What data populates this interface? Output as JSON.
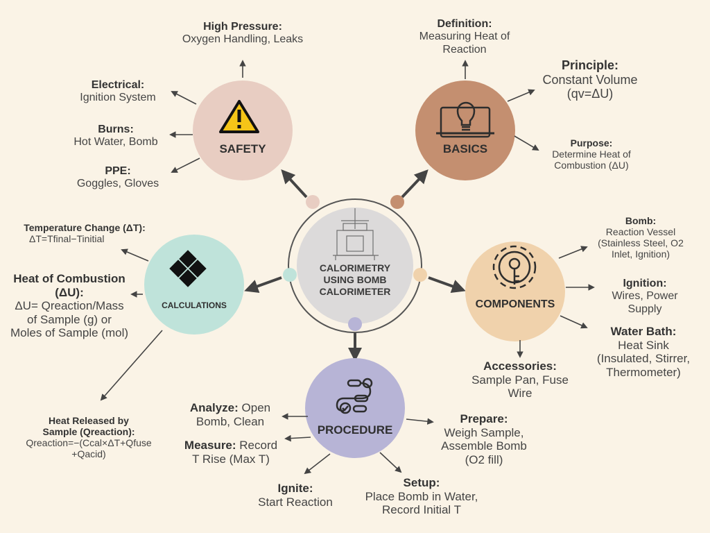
{
  "center": {
    "title": "CALORIMETRY\nUSING BOMB\nCALORIMETER"
  },
  "colors": {
    "background": "#faf3e6",
    "safety": "#e8cdc2",
    "basics": "#c48f70",
    "components": "#f0d2ac",
    "procedure": "#b7b4d6",
    "calculations": "#bfe3da",
    "center": "#dcdada"
  },
  "nodes": {
    "safety": {
      "label": "SAFETY",
      "icon": "warning-icon"
    },
    "basics": {
      "label": "BASICS",
      "icon": "lightbulb-icon"
    },
    "components": {
      "label": "COMPONENTS",
      "icon": "gear-key-icon"
    },
    "procedure": {
      "label": "PROCEDURE",
      "icon": "workflow-icon"
    },
    "calculations": {
      "label": "CALCULATIONS",
      "icon": "calculator-icon"
    }
  },
  "safety": {
    "high_pressure": {
      "title": "High Pressure:",
      "text": "Oxygen Handling, Leaks"
    },
    "electrical": {
      "title": "Electrical:",
      "text": "Ignition System"
    },
    "burns": {
      "title": "Burns:",
      "text": "Hot Water, Bomb"
    },
    "ppe": {
      "title": "PPE:",
      "text": "Goggles, Gloves"
    }
  },
  "basics": {
    "definition": {
      "title": "Definition:",
      "text": "Measuring Heat of\nReaction"
    },
    "principle": {
      "title": "Principle:",
      "text": "Constant Volume\n(qv=ΔU)"
    },
    "purpose": {
      "title": "Purpose:",
      "text": "Determine Heat of\nCombustion (ΔU)"
    }
  },
  "components": {
    "bomb": {
      "title": "Bomb:",
      "text": "Reaction Vessel\n(Stainless Steel, O2\nInlet, Ignition)"
    },
    "ignition": {
      "title": "Ignition:",
      "text": "Wires, Power\nSupply"
    },
    "water_bath": {
      "title": "Water Bath:",
      "text": "Heat Sink\n(Insulated, Stirrer,\nThermometer)"
    },
    "accessories": {
      "title": "Accessories:",
      "text": "Sample Pan, Fuse\nWire"
    }
  },
  "procedure": {
    "prepare": {
      "title": "Prepare:",
      "text": "Weigh Sample,\nAssemble Bomb\n(O2 fill)"
    },
    "setup": {
      "title": "Setup:",
      "text": "Place Bomb in Water,\nRecord Initial T"
    },
    "ignite": {
      "title": "Ignite:",
      "text": "Start Reaction"
    },
    "measure": {
      "title": "Measure:",
      "text": "Record\nT Rise (Max T)"
    },
    "analyze": {
      "title": "Analyze:",
      "text": "Open\nBomb, Clean"
    }
  },
  "calculations": {
    "temp_change": {
      "title": "Temperature Change (ΔT):",
      "text": "ΔT=Tfinal−Tinitial"
    },
    "heat_combustion": {
      "title": "Heat of Combustion\n(ΔU):",
      "text": "ΔU= Qreaction/Mass\nof Sample (g) or\nMoles of Sample (mol)"
    },
    "heat_released": {
      "title": "Heat Released by\nSample (Qreaction):",
      "text": "Qreaction=−(Ccal×ΔT+Qfuse\n+Qacid)"
    }
  }
}
